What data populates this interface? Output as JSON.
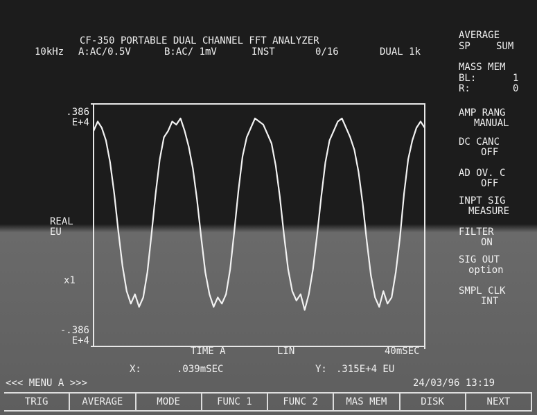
{
  "header": {
    "title": "CF-350 PORTABLE DUAL CHANNEL FFT ANALYZER",
    "status": [
      "10kHz",
      "A:AC/0.5V",
      "B:AC/ 1mV",
      "INST",
      "0/16",
      "DUAL 1k"
    ]
  },
  "side_menu": [
    "AVERAGE",
    "SP",
    "SUM",
    "MASS MEM",
    "BL:",
    "1",
    "R:",
    "0",
    "AMP RANG",
    "MANUAL",
    "DC CANC",
    "OFF",
    "AD OV. C",
    "OFF",
    "INPT SIG",
    "MEASURE",
    "FILTER",
    "ON",
    "SIG OUT",
    "option",
    "SMPL CLK",
    "INT"
  ],
  "left_labels": [
    "REAL",
    "EU",
    "x1"
  ],
  "axis_info": [
    "TIME A",
    "LIN"
  ],
  "cursor": [
    "X:",
    ".039mSEC",
    "Y:",
    ".315E+4 EU"
  ],
  "menu_title": "<<< MENU A >>>",
  "datetime": "24/03/96 13:19",
  "softkeys": [
    "TRIG",
    "AVERAGE",
    "MODE",
    "FUNC 1",
    "FUNC 2",
    "MAS MEM",
    "DISK",
    "NEXT"
  ],
  "chart_data": {
    "type": "line",
    "color": "#f2f2f2",
    "xlim": [
      0,
      40
    ],
    "xticks": [
      {
        "value": 40,
        "label": "40mSEC"
      }
    ],
    "ylim": [
      -0.386,
      0.386
    ],
    "yticks": [
      {
        "value": 0.386,
        "label": ".386 E+4"
      },
      {
        "value": -0.386,
        "label": "-.386 E+4"
      }
    ],
    "x": [
      0,
      0.5,
      1,
      1.5,
      2,
      2.5,
      3,
      3.5,
      4,
      4.5,
      5,
      5.5,
      6,
      6.5,
      7,
      7.5,
      8,
      8.5,
      9,
      9.5,
      10,
      10.5,
      11,
      11.5,
      12,
      12.5,
      13,
      13.5,
      14,
      14.5,
      15,
      15.5,
      16,
      16.5,
      17,
      17.5,
      18,
      18.5,
      19,
      19.5,
      20,
      20.5,
      21,
      21.5,
      22,
      22.5,
      23,
      23.5,
      24,
      24.5,
      25,
      25.5,
      26,
      26.5,
      27,
      27.5,
      28,
      28.5,
      29,
      29.5,
      30,
      30.5,
      31,
      31.5,
      32,
      32.5,
      33,
      33.5,
      34,
      34.5,
      35,
      35.5,
      36,
      36.5,
      37,
      37.5,
      38,
      38.5,
      39,
      39.5,
      40
    ],
    "values": [
      0.3,
      0.33,
      0.31,
      0.27,
      0.2,
      0.1,
      -0.02,
      -0.13,
      -0.21,
      -0.25,
      -0.22,
      -0.26,
      -0.23,
      -0.15,
      -0.03,
      0.1,
      0.21,
      0.28,
      0.3,
      0.33,
      0.32,
      0.34,
      0.3,
      0.25,
      0.18,
      0.08,
      -0.04,
      -0.15,
      -0.22,
      -0.26,
      -0.23,
      -0.25,
      -0.22,
      -0.14,
      -0.02,
      0.11,
      0.22,
      0.28,
      0.31,
      0.34,
      0.33,
      0.32,
      0.29,
      0.26,
      0.19,
      0.09,
      -0.03,
      -0.14,
      -0.21,
      -0.24,
      -0.22,
      -0.27,
      -0.22,
      -0.14,
      -0.03,
      0.09,
      0.2,
      0.27,
      0.3,
      0.33,
      0.34,
      0.31,
      0.28,
      0.24,
      0.17,
      0.07,
      -0.05,
      -0.16,
      -0.23,
      -0.26,
      -0.21,
      -0.25,
      -0.23,
      -0.15,
      -0.04,
      0.1,
      0.21,
      0.27,
      0.31,
      0.33,
      0.31
    ]
  }
}
